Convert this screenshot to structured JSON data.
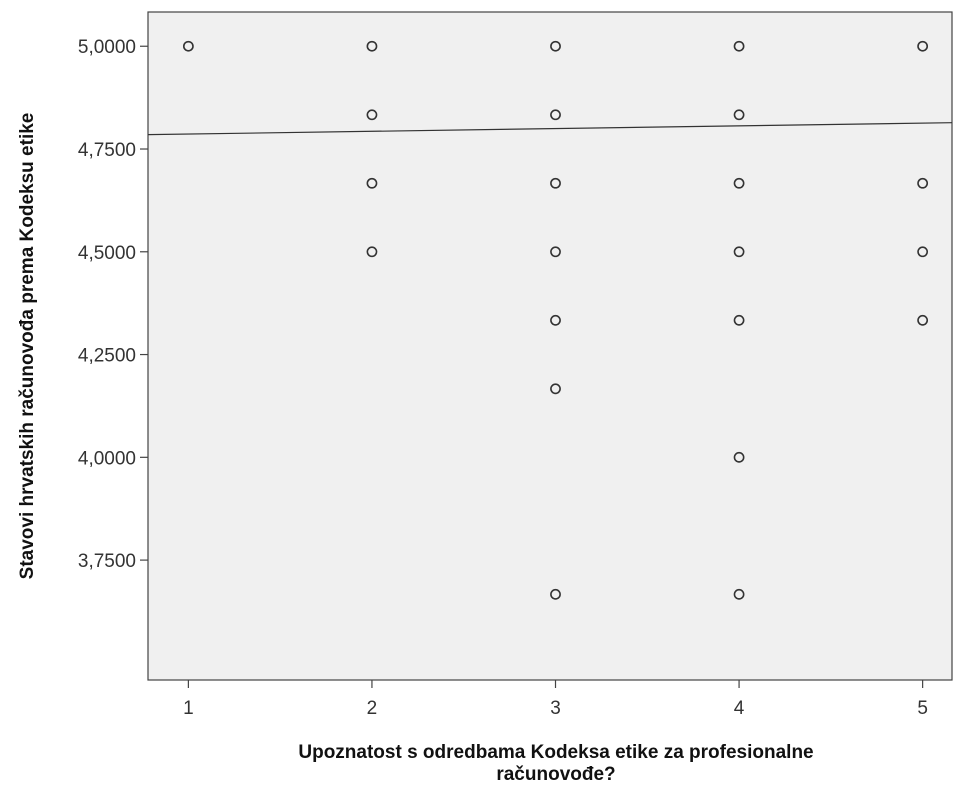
{
  "chart_data": {
    "type": "scatter",
    "xlabel_line1": "Upoznatost s odredbama Kodeksa etike za profesionalne",
    "xlabel_line2": "računovođe?",
    "ylabel": "Stavovi hrvatskih računovođa prema Kodeksu etike",
    "xlim": [
      0.78,
      5.16
    ],
    "ylim": [
      3.4583,
      5.0833
    ],
    "x_ticks": [
      1,
      2,
      3,
      4,
      5
    ],
    "x_tick_labels": [
      "1",
      "2",
      "3",
      "4",
      "5"
    ],
    "y_ticks": [
      3.75,
      4.0,
      4.25,
      4.5,
      4.75,
      5.0
    ],
    "y_tick_labels": [
      "3,7500",
      "4,0000",
      "4,2500",
      "4,5000",
      "4,7500",
      "5,0000"
    ],
    "grid": false,
    "legend": "none",
    "colors": {
      "plot_background": "#f0f0f0",
      "marker_stroke": "#333333",
      "line": "#333333"
    },
    "points": [
      {
        "x": 1,
        "y": 5.0
      },
      {
        "x": 2,
        "y": 5.0
      },
      {
        "x": 2,
        "y": 4.8333
      },
      {
        "x": 2,
        "y": 4.6667
      },
      {
        "x": 2,
        "y": 4.5
      },
      {
        "x": 3,
        "y": 5.0
      },
      {
        "x": 3,
        "y": 4.8333
      },
      {
        "x": 3,
        "y": 4.6667
      },
      {
        "x": 3,
        "y": 4.5
      },
      {
        "x": 3,
        "y": 4.3333
      },
      {
        "x": 3,
        "y": 4.1667
      },
      {
        "x": 3,
        "y": 3.6667
      },
      {
        "x": 4,
        "y": 5.0
      },
      {
        "x": 4,
        "y": 4.8333
      },
      {
        "x": 4,
        "y": 4.6667
      },
      {
        "x": 4,
        "y": 4.5
      },
      {
        "x": 4,
        "y": 4.3333
      },
      {
        "x": 4,
        "y": 4.0
      },
      {
        "x": 4,
        "y": 3.6667
      },
      {
        "x": 5,
        "y": 5.0
      },
      {
        "x": 5,
        "y": 4.6667
      },
      {
        "x": 5,
        "y": 4.5
      },
      {
        "x": 5,
        "y": 4.3333
      }
    ],
    "fit_line": {
      "x": [
        0.78,
        5.16
      ],
      "y": [
        4.785,
        4.814
      ]
    }
  }
}
